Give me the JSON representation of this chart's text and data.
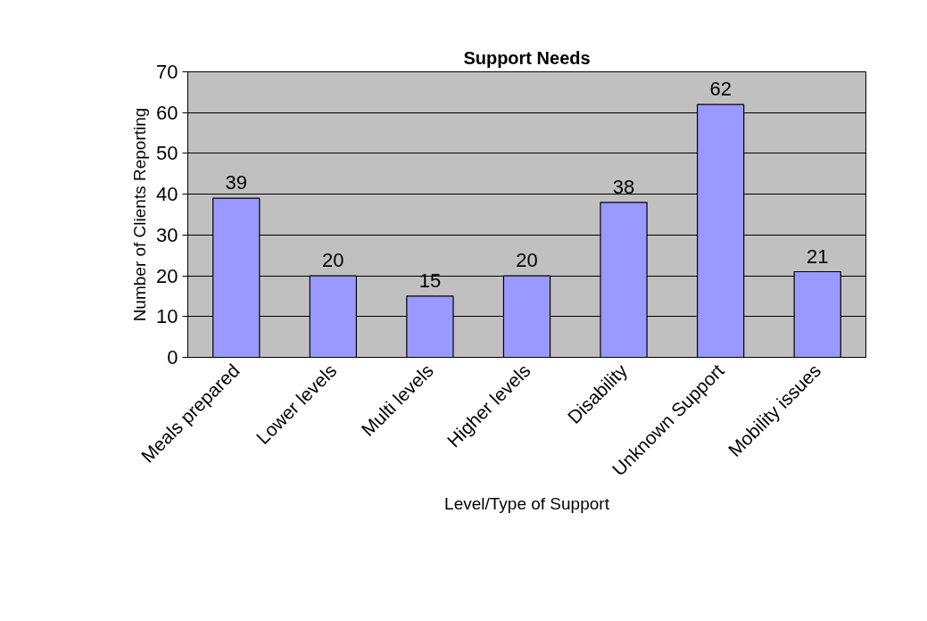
{
  "chart_data": {
    "type": "bar",
    "title": "Support Needs",
    "xlabel": "Level/Type of Support",
    "ylabel": "Number of Clients Reporting",
    "categories": [
      "Meals prepared",
      "Lower levels",
      "Multi levels",
      "Higher levels",
      "Disability",
      "Unknown Support",
      "Mobility issues"
    ],
    "values": [
      39,
      20,
      15,
      20,
      38,
      62,
      21
    ],
    "color": "#9999ff",
    "ylim": [
      0,
      70
    ],
    "yticks": [
      0,
      10,
      20,
      30,
      40,
      50,
      60,
      70
    ],
    "grid": "y",
    "data_labels": true
  }
}
